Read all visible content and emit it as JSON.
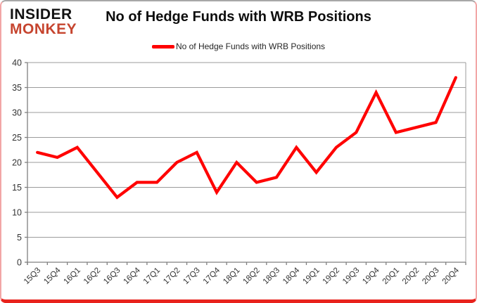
{
  "logo": {
    "line1": "INSIDER",
    "line2": "MONKEY",
    "line2_color": "#c6452f"
  },
  "title": "No of Hedge Funds with WRB Positions",
  "legend": {
    "label": "No of Hedge Funds with WRB Positions",
    "marker_color": "#ff0000"
  },
  "chart_data": {
    "type": "line",
    "title": "No of Hedge Funds with WRB Positions",
    "categories": [
      "15Q3",
      "15Q4",
      "16Q1",
      "16Q2",
      "16Q3",
      "16Q4",
      "17Q1",
      "17Q2",
      "17Q3",
      "17Q4",
      "18Q1",
      "18Q2",
      "18Q3",
      "18Q4",
      "19Q1",
      "19Q2",
      "19Q3",
      "19Q4",
      "20Q1",
      "20Q2",
      "20Q3",
      "20Q4"
    ],
    "series": [
      {
        "name": "No of Hedge Funds with WRB Positions",
        "values": [
          22,
          21,
          23,
          18,
          13,
          16,
          16,
          20,
          22,
          14,
          20,
          16,
          17,
          23,
          18,
          23,
          26,
          34,
          26,
          27,
          28,
          37
        ],
        "color": "#ff0000"
      }
    ],
    "xlabel": "",
    "ylabel": "",
    "ylim": [
      0,
      40
    ],
    "ytick_step": 5,
    "grid": true,
    "legend_position": "top",
    "gridline_color": "#9b9b9b",
    "axis_color": "#7f7f7f",
    "tick_label_color": "#333333"
  }
}
